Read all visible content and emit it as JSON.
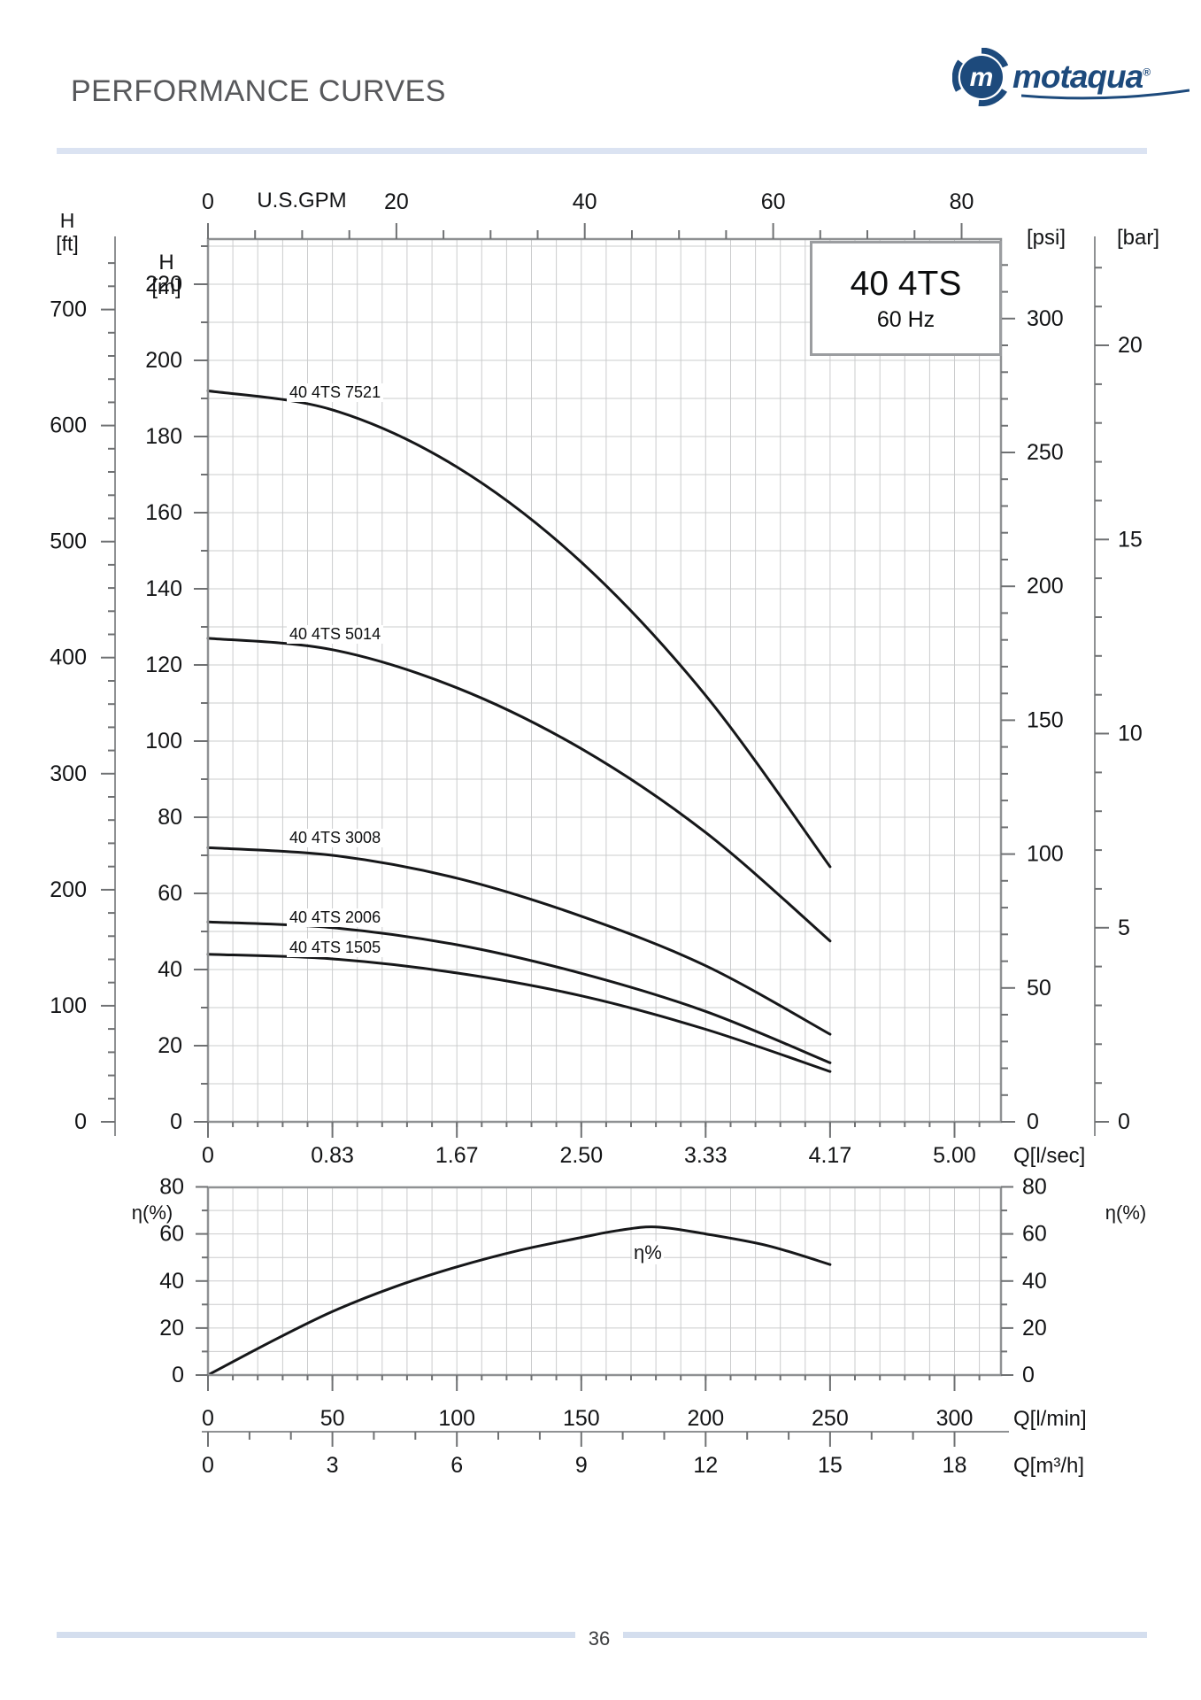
{
  "header": {
    "title": "PERFORMANCE CURVES",
    "logo": {
      "brand": "motaqua",
      "mark": "m",
      "registered": "®"
    }
  },
  "footer": {
    "page_number": "36"
  },
  "chart_data": [
    {
      "id": "head_capacity_curves",
      "type": "line",
      "title": "40 4TS",
      "subtitle": "60 Hz",
      "x_axes": [
        {
          "id": "gpm",
          "label": "U.S.GPM",
          "side": "top",
          "ticks": [
            0,
            20,
            40,
            60,
            80
          ],
          "minor_step": 5,
          "lmin_per_unit": 3.78541
        },
        {
          "id": "lsec",
          "label": "Q[l/sec]",
          "side": "bottom",
          "tick_labels": [
            "0",
            "0.83",
            "1.67",
            "2.50",
            "3.33",
            "4.17",
            "5.00"
          ],
          "tick_lmin": [
            0,
            50,
            100,
            150,
            200,
            250,
            300
          ]
        }
      ],
      "y_axes": [
        {
          "id": "ft",
          "label": "H",
          "unit": "[ft]",
          "ticks": [
            0,
            100,
            200,
            300,
            400,
            500,
            600,
            700
          ],
          "minor_step": 20,
          "minor_max": 740,
          "m_per_unit": 0.3048
        },
        {
          "id": "m",
          "label": "H",
          "unit": "[m]",
          "ticks": [
            0,
            20,
            40,
            60,
            80,
            100,
            120,
            140,
            160,
            180,
            200,
            220
          ],
          "minor_step": 10,
          "minor_max": 230,
          "m_per_unit": 1
        },
        {
          "id": "psi",
          "label": "[psi]",
          "ticks": [
            0,
            50,
            100,
            150,
            200,
            250,
            300
          ],
          "minor_step": 10,
          "minor_max": 320,
          "m_per_unit": 0.70325
        },
        {
          "id": "bar",
          "label": "[bar]",
          "ticks": [
            0,
            5,
            10,
            15,
            20
          ],
          "minor_step": 1,
          "minor_max": 22,
          "m_per_unit": 10.1972
        }
      ],
      "xlim_lmin": [
        0,
        318
      ],
      "ylim_m": [
        0,
        232
      ],
      "grid": true,
      "series": [
        {
          "name": "40 4TS 7521",
          "q_lmin": [
            0,
            50,
            100,
            150,
            200,
            250
          ],
          "h_m": [
            192,
            187,
            172,
            147,
            112,
            67
          ]
        },
        {
          "name": "40 4TS 5014",
          "q_lmin": [
            0,
            50,
            100,
            150,
            200,
            250
          ],
          "h_m": [
            127,
            124,
            114,
            98,
            76,
            47.5
          ]
        },
        {
          "name": "40 4TS 3008",
          "q_lmin": [
            0,
            50,
            100,
            150,
            200,
            250
          ],
          "h_m": [
            72,
            70,
            64,
            54,
            41,
            23
          ]
        },
        {
          "name": "40 4TS 2006",
          "q_lmin": [
            0,
            50,
            100,
            150,
            200,
            250
          ],
          "h_m": [
            52.5,
            51,
            46.5,
            39,
            29,
            15.5
          ]
        },
        {
          "name": "40 4TS 1505",
          "q_lmin": [
            0,
            50,
            100,
            150,
            200,
            250
          ],
          "h_m": [
            44,
            42.8,
            39.1,
            33.1,
            24.3,
            13.2
          ]
        }
      ]
    },
    {
      "id": "efficiency_curve",
      "type": "line",
      "ylabel": "η(%)",
      "curve_label": "η%",
      "y_ticks": [
        0,
        20,
        40,
        60,
        80
      ],
      "y_minor_step": 10,
      "ylim": [
        0,
        80
      ],
      "grid": true,
      "x_axes": [
        {
          "id": "lmin",
          "label": "Q[l/min]",
          "ticks": [
            0,
            50,
            100,
            150,
            200,
            250,
            300
          ],
          "minor_step": 10
        },
        {
          "id": "m3h",
          "label": "Q[m³/h]",
          "ticks": [
            0,
            3,
            6,
            9,
            12,
            15,
            18
          ],
          "minor_step": 1,
          "lmin_per_unit": 16.6667
        }
      ],
      "series": [
        {
          "name": "η%",
          "q_lmin": [
            0,
            25,
            50,
            75,
            100,
            125,
            150,
            165,
            180,
            200,
            225,
            250
          ],
          "eta_pct": [
            0,
            14,
            27,
            37.5,
            46,
            53,
            58.5,
            61.5,
            63,
            60,
            55,
            47
          ]
        }
      ]
    }
  ]
}
